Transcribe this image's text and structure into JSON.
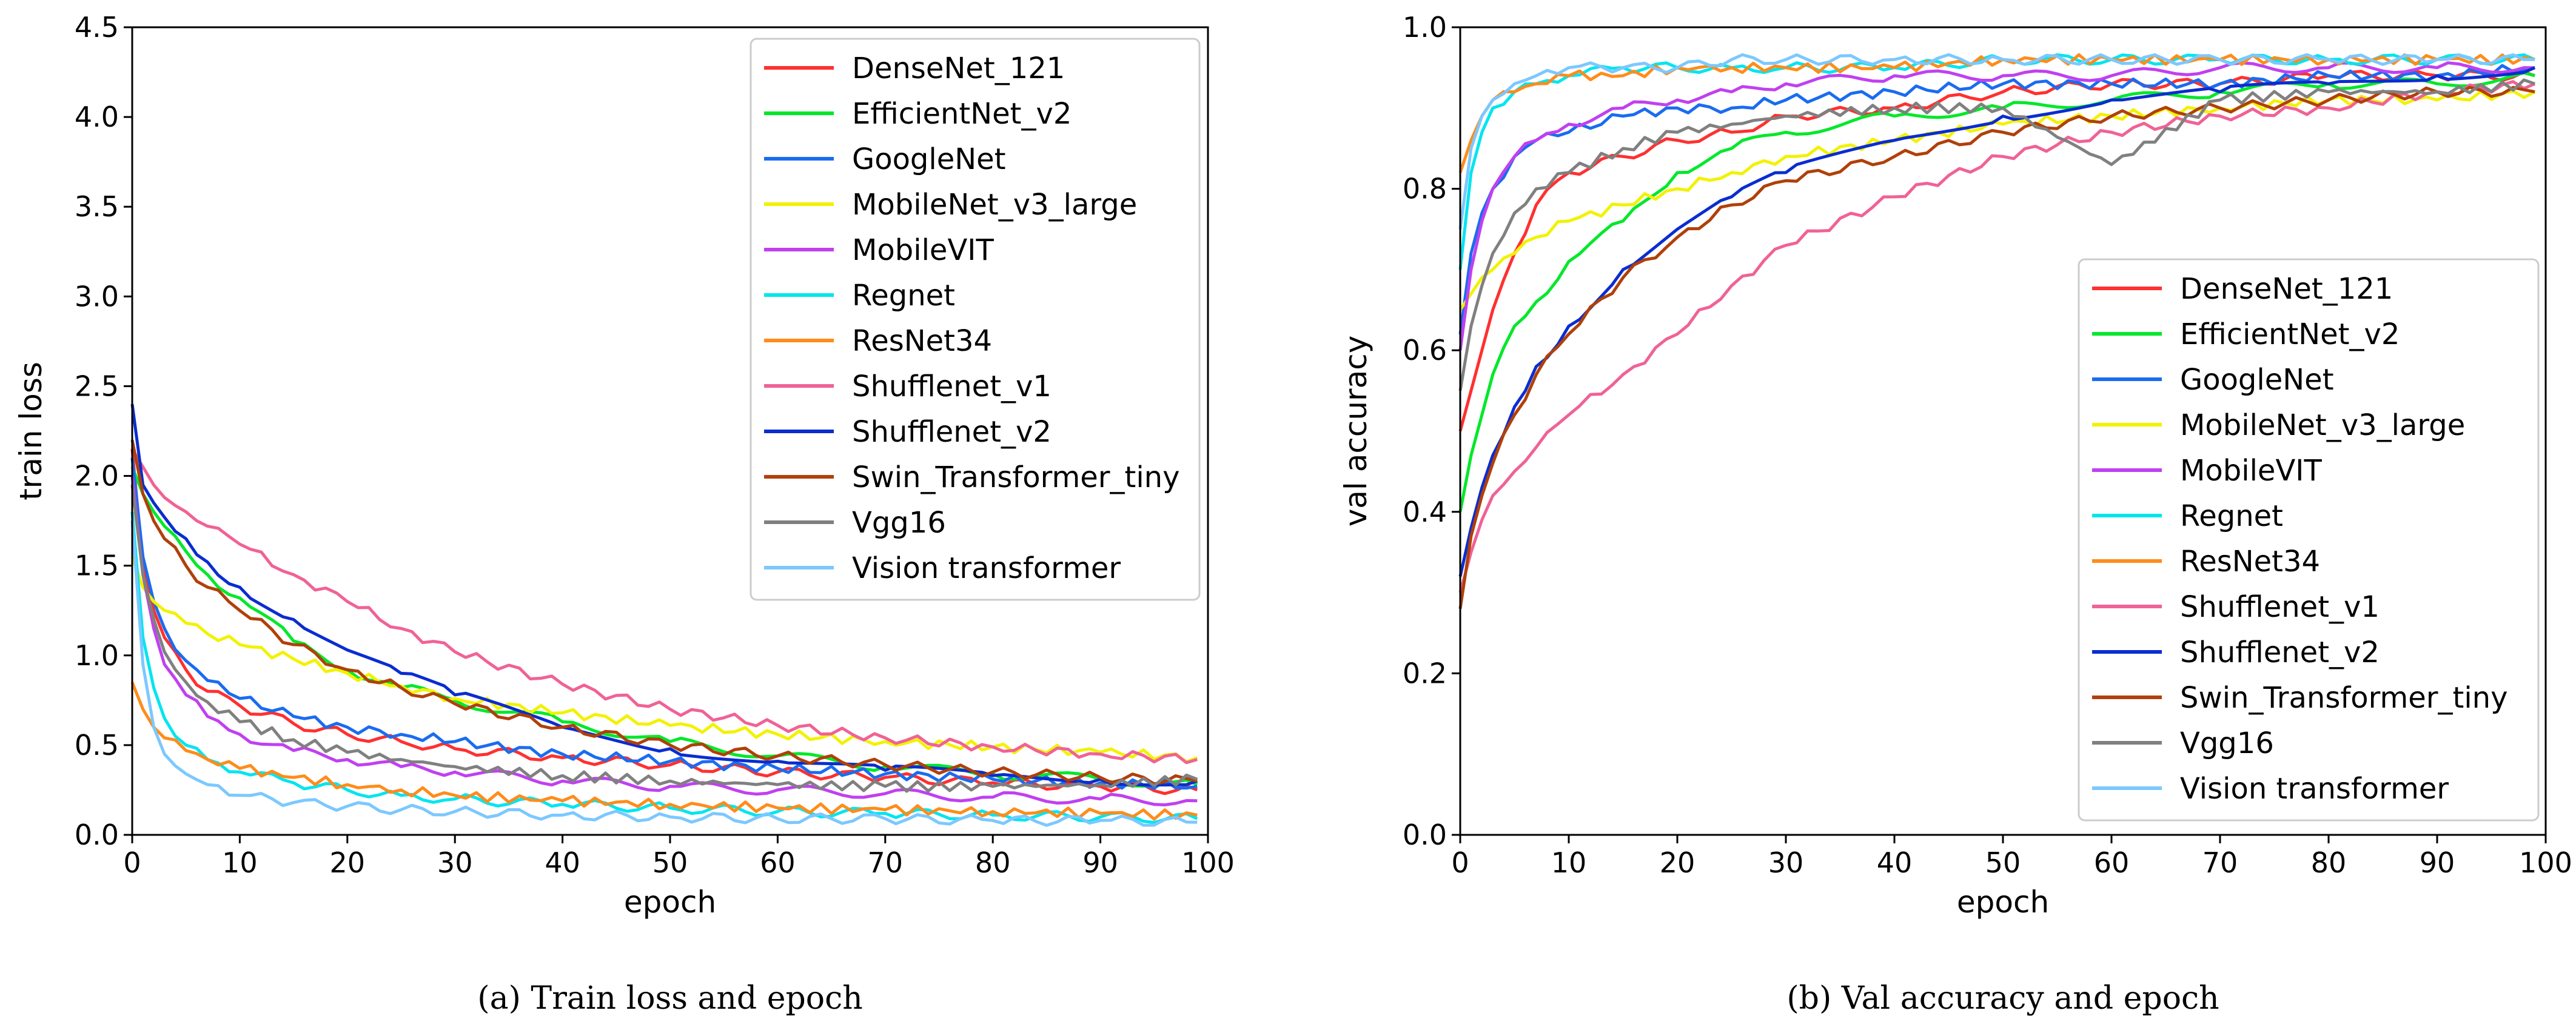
{
  "chart_data": [
    {
      "type": "line",
      "caption": "(a) Train loss and epoch",
      "title": "",
      "xlabel": "epoch",
      "ylabel": "train loss",
      "xlim": [
        0,
        100
      ],
      "ylim": [
        0,
        4.5
      ],
      "xticks": [
        "0",
        "10",
        "20",
        "30",
        "40",
        "50",
        "60",
        "70",
        "80",
        "90",
        "100"
      ],
      "yticks": [
        "0.0",
        "0.5",
        "1.0",
        "1.5",
        "2.0",
        "2.5",
        "3.0",
        "3.5",
        "4.0",
        "4.5"
      ],
      "legend_position": "top-right",
      "series": [
        {
          "name": "DenseNet_121",
          "color": "#ff3030",
          "x": [
            0,
            1,
            2,
            3,
            5,
            7,
            10,
            15,
            20,
            25,
            30,
            40,
            50,
            60,
            70,
            80,
            90,
            99
          ],
          "values": [
            2.15,
            1.5,
            1.25,
            1.1,
            0.92,
            0.8,
            0.72,
            0.62,
            0.56,
            0.52,
            0.48,
            0.43,
            0.39,
            0.35,
            0.32,
            0.29,
            0.27,
            0.25
          ]
        },
        {
          "name": "EfficientNet_v2",
          "color": "#00e82a",
          "x": [
            0,
            1,
            2,
            3,
            5,
            7,
            10,
            15,
            20,
            25,
            30,
            40,
            50,
            60,
            70,
            80,
            90,
            99
          ],
          "values": [
            2.05,
            1.9,
            1.8,
            1.72,
            1.58,
            1.45,
            1.32,
            1.08,
            0.92,
            0.82,
            0.75,
            0.63,
            0.52,
            0.44,
            0.38,
            0.34,
            0.31,
            0.28
          ]
        },
        {
          "name": "GoogleNet",
          "color": "#1a6cf0",
          "x": [
            0,
            1,
            2,
            3,
            5,
            7,
            10,
            15,
            20,
            25,
            30,
            40,
            50,
            60,
            70,
            80,
            90,
            99
          ],
          "values": [
            2.1,
            1.55,
            1.3,
            1.15,
            0.97,
            0.86,
            0.76,
            0.66,
            0.6,
            0.56,
            0.52,
            0.45,
            0.41,
            0.37,
            0.34,
            0.31,
            0.29,
            0.27
          ]
        },
        {
          "name": "MobileNet_v3_large",
          "color": "#f2f200",
          "x": [
            0,
            1,
            2,
            3,
            5,
            7,
            10,
            15,
            20,
            25,
            30,
            40,
            50,
            60,
            70,
            80,
            90,
            99
          ],
          "values": [
            1.55,
            1.38,
            1.3,
            1.25,
            1.18,
            1.12,
            1.06,
            0.98,
            0.9,
            0.83,
            0.76,
            0.68,
            0.61,
            0.56,
            0.52,
            0.49,
            0.46,
            0.43
          ]
        },
        {
          "name": "MobileVIT",
          "color": "#c040f0",
          "x": [
            0,
            1,
            2,
            3,
            5,
            7,
            10,
            15,
            20,
            25,
            30,
            40,
            50,
            60,
            70,
            80,
            90,
            99
          ],
          "values": [
            2.0,
            1.45,
            1.15,
            0.95,
            0.78,
            0.66,
            0.56,
            0.47,
            0.42,
            0.38,
            0.35,
            0.3,
            0.27,
            0.25,
            0.23,
            0.21,
            0.2,
            0.19
          ]
        },
        {
          "name": "Regnet",
          "color": "#00e5f0",
          "x": [
            0,
            1,
            2,
            3,
            5,
            7,
            10,
            15,
            20,
            25,
            30,
            40,
            50,
            60,
            70,
            80,
            90,
            99
          ],
          "values": [
            1.8,
            1.1,
            0.82,
            0.65,
            0.5,
            0.42,
            0.35,
            0.29,
            0.25,
            0.22,
            0.2,
            0.17,
            0.15,
            0.13,
            0.12,
            0.11,
            0.1,
            0.09
          ]
        },
        {
          "name": "ResNet34",
          "color": "#ff8c1a",
          "x": [
            0,
            1,
            2,
            3,
            5,
            7,
            10,
            15,
            20,
            25,
            30,
            40,
            50,
            60,
            70,
            80,
            90,
            99
          ],
          "values": [
            0.85,
            0.7,
            0.6,
            0.54,
            0.47,
            0.42,
            0.37,
            0.32,
            0.28,
            0.25,
            0.22,
            0.19,
            0.17,
            0.15,
            0.14,
            0.13,
            0.12,
            0.11
          ]
        },
        {
          "name": "Shufflenet_v1",
          "color": "#f06296",
          "x": [
            0,
            1,
            2,
            3,
            5,
            7,
            10,
            15,
            20,
            25,
            30,
            40,
            50,
            60,
            70,
            80,
            90,
            99
          ],
          "values": [
            2.15,
            2.05,
            1.95,
            1.88,
            1.8,
            1.72,
            1.62,
            1.45,
            1.3,
            1.15,
            1.02,
            0.84,
            0.7,
            0.61,
            0.54,
            0.49,
            0.45,
            0.42
          ]
        },
        {
          "name": "Shufflenet_v2",
          "color": "#0a2dd0",
          "x": [
            0,
            1,
            2,
            3,
            5,
            7,
            10,
            15,
            20,
            25,
            30,
            40,
            50,
            60,
            70,
            80,
            90,
            99
          ],
          "values": [
            2.4,
            1.95,
            1.85,
            1.77,
            1.65,
            1.52,
            1.38,
            1.2,
            1.03,
            0.9,
            0.78,
            0.6,
            0.48,
            0.41,
            0.36,
            0.33,
            0.31,
            0.3
          ]
        },
        {
          "name": "Swin_Transformer_tiny",
          "color": "#b0400a",
          "x": [
            0,
            1,
            2,
            3,
            5,
            7,
            10,
            15,
            20,
            25,
            30,
            40,
            50,
            60,
            70,
            80,
            90,
            99
          ],
          "values": [
            2.2,
            1.9,
            1.75,
            1.65,
            1.5,
            1.38,
            1.25,
            1.06,
            0.92,
            0.82,
            0.73,
            0.6,
            0.5,
            0.44,
            0.39,
            0.35,
            0.32,
            0.3
          ]
        },
        {
          "name": "Vgg16",
          "color": "#808080",
          "x": [
            0,
            1,
            2,
            3,
            5,
            7,
            10,
            15,
            20,
            25,
            30,
            40,
            50,
            60,
            70,
            80,
            90,
            99
          ],
          "values": [
            1.95,
            1.45,
            1.2,
            1.02,
            0.85,
            0.74,
            0.63,
            0.53,
            0.46,
            0.42,
            0.38,
            0.33,
            0.3,
            0.28,
            0.27,
            0.27,
            0.28,
            0.31
          ]
        },
        {
          "name": "Vision transformer",
          "color": "#7cc8ff",
          "x": [
            0,
            1,
            2,
            3,
            5,
            7,
            10,
            15,
            20,
            25,
            30,
            40,
            50,
            60,
            70,
            80,
            90,
            99
          ],
          "values": [
            1.75,
            0.95,
            0.6,
            0.45,
            0.34,
            0.28,
            0.22,
            0.18,
            0.16,
            0.14,
            0.13,
            0.11,
            0.1,
            0.09,
            0.09,
            0.08,
            0.08,
            0.07
          ]
        }
      ]
    },
    {
      "type": "line",
      "caption": "(b) Val accuracy and epoch",
      "title": "",
      "xlabel": "epoch",
      "ylabel": "val accuracy",
      "xlim": [
        0,
        100
      ],
      "ylim": [
        0,
        1.0
      ],
      "xticks": [
        "0",
        "10",
        "20",
        "30",
        "40",
        "50",
        "60",
        "70",
        "80",
        "90",
        "100"
      ],
      "yticks": [
        "0.0",
        "0.2",
        "0.4",
        "0.6",
        "0.8",
        "1.0"
      ],
      "legend_position": "center-right",
      "series": [
        {
          "name": "DenseNet_121",
          "color": "#ff3030",
          "x": [
            0,
            1,
            2,
            3,
            5,
            7,
            10,
            15,
            20,
            25,
            30,
            40,
            50,
            60,
            70,
            80,
            90,
            99
          ],
          "values": [
            0.5,
            0.55,
            0.6,
            0.65,
            0.72,
            0.78,
            0.82,
            0.84,
            0.86,
            0.87,
            0.89,
            0.9,
            0.92,
            0.93,
            0.93,
            0.94,
            0.94,
            0.94
          ]
        },
        {
          "name": "EfficientNet_v2",
          "color": "#00e82a",
          "x": [
            0,
            1,
            2,
            3,
            5,
            7,
            10,
            15,
            20,
            25,
            30,
            40,
            50,
            60,
            70,
            80,
            90,
            99
          ],
          "values": [
            0.4,
            0.47,
            0.52,
            0.57,
            0.63,
            0.66,
            0.71,
            0.76,
            0.82,
            0.85,
            0.87,
            0.89,
            0.9,
            0.91,
            0.92,
            0.93,
            0.93,
            0.94
          ]
        },
        {
          "name": "GoogleNet",
          "color": "#1a6cf0",
          "x": [
            0,
            1,
            2,
            3,
            5,
            7,
            10,
            15,
            20,
            25,
            30,
            40,
            50,
            60,
            70,
            80,
            90,
            99
          ],
          "values": [
            0.62,
            0.72,
            0.77,
            0.8,
            0.84,
            0.86,
            0.87,
            0.89,
            0.9,
            0.9,
            0.91,
            0.92,
            0.93,
            0.93,
            0.93,
            0.94,
            0.94,
            0.95
          ]
        },
        {
          "name": "MobileNet_v3_large",
          "color": "#f2f200",
          "x": [
            0,
            1,
            2,
            3,
            5,
            7,
            10,
            15,
            20,
            25,
            30,
            40,
            50,
            60,
            70,
            80,
            90,
            99
          ],
          "values": [
            0.65,
            0.67,
            0.69,
            0.7,
            0.72,
            0.74,
            0.76,
            0.78,
            0.8,
            0.82,
            0.84,
            0.86,
            0.88,
            0.89,
            0.9,
            0.91,
            0.91,
            0.92
          ]
        },
        {
          "name": "MobileVIT",
          "color": "#c040f0",
          "x": [
            0,
            1,
            2,
            3,
            5,
            7,
            10,
            15,
            20,
            25,
            30,
            40,
            50,
            60,
            70,
            80,
            90,
            99
          ],
          "values": [
            0.6,
            0.7,
            0.76,
            0.8,
            0.84,
            0.86,
            0.88,
            0.9,
            0.91,
            0.92,
            0.93,
            0.94,
            0.94,
            0.94,
            0.95,
            0.95,
            0.95,
            0.95
          ]
        },
        {
          "name": "Regnet",
          "color": "#00e5f0",
          "x": [
            0,
            1,
            2,
            3,
            5,
            7,
            10,
            15,
            20,
            25,
            30,
            40,
            50,
            60,
            70,
            80,
            90,
            99
          ],
          "values": [
            0.7,
            0.82,
            0.87,
            0.9,
            0.92,
            0.93,
            0.94,
            0.95,
            0.95,
            0.95,
            0.95,
            0.95,
            0.96,
            0.96,
            0.96,
            0.96,
            0.96,
            0.96
          ]
        },
        {
          "name": "ResNet34",
          "color": "#ff8c1a",
          "x": [
            0,
            1,
            2,
            3,
            5,
            7,
            10,
            15,
            20,
            25,
            30,
            40,
            50,
            60,
            70,
            80,
            90,
            99
          ],
          "values": [
            0.82,
            0.86,
            0.89,
            0.91,
            0.92,
            0.93,
            0.94,
            0.94,
            0.95,
            0.95,
            0.95,
            0.95,
            0.96,
            0.96,
            0.96,
            0.96,
            0.96,
            0.96
          ]
        },
        {
          "name": "Shufflenet_v1",
          "color": "#f06296",
          "x": [
            0,
            1,
            2,
            3,
            5,
            7,
            10,
            15,
            20,
            25,
            30,
            40,
            50,
            60,
            70,
            80,
            90,
            99
          ],
          "values": [
            0.3,
            0.35,
            0.39,
            0.42,
            0.45,
            0.48,
            0.52,
            0.57,
            0.62,
            0.68,
            0.73,
            0.79,
            0.84,
            0.87,
            0.89,
            0.9,
            0.92,
            0.93
          ]
        },
        {
          "name": "Shufflenet_v2",
          "color": "#0a2dd0",
          "x": [
            0,
            1,
            2,
            3,
            5,
            7,
            10,
            15,
            20,
            25,
            30,
            40,
            50,
            60,
            70,
            80,
            90,
            99
          ],
          "values": [
            0.32,
            0.38,
            0.43,
            0.47,
            0.53,
            0.58,
            0.63,
            0.7,
            0.75,
            0.79,
            0.82,
            0.86,
            0.89,
            0.91,
            0.92,
            0.93,
            0.94,
            0.95
          ]
        },
        {
          "name": "Swin_Transformer_tiny",
          "color": "#b0400a",
          "x": [
            0,
            1,
            2,
            3,
            5,
            7,
            10,
            15,
            20,
            25,
            30,
            40,
            50,
            60,
            70,
            80,
            90,
            99
          ],
          "values": [
            0.28,
            0.37,
            0.42,
            0.46,
            0.52,
            0.57,
            0.62,
            0.69,
            0.74,
            0.78,
            0.81,
            0.84,
            0.87,
            0.89,
            0.9,
            0.91,
            0.92,
            0.92
          ]
        },
        {
          "name": "Vgg16",
          "color": "#808080",
          "x": [
            0,
            1,
            2,
            3,
            5,
            7,
            10,
            15,
            20,
            25,
            30,
            40,
            50,
            60,
            70,
            80,
            90,
            99
          ],
          "values": [
            0.55,
            0.63,
            0.68,
            0.72,
            0.77,
            0.8,
            0.82,
            0.85,
            0.87,
            0.88,
            0.89,
            0.9,
            0.9,
            0.83,
            0.91,
            0.92,
            0.92,
            0.93
          ]
        },
        {
          "name": "Vision transformer",
          "color": "#7cc8ff",
          "x": [
            0,
            1,
            2,
            3,
            5,
            7,
            10,
            15,
            20,
            25,
            30,
            40,
            50,
            60,
            70,
            80,
            90,
            99
          ],
          "values": [
            0.75,
            0.85,
            0.89,
            0.91,
            0.93,
            0.94,
            0.95,
            0.95,
            0.95,
            0.96,
            0.96,
            0.96,
            0.96,
            0.96,
            0.96,
            0.96,
            0.96,
            0.96
          ]
        }
      ]
    }
  ]
}
